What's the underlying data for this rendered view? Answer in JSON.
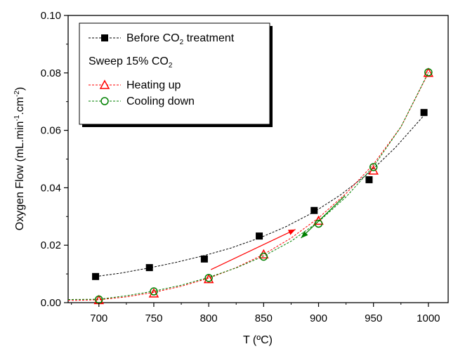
{
  "chart_data": {
    "type": "scatter",
    "xlabel": "T (ºC)",
    "ylabel_main": "Oxygen Flow (mL.min",
    "ylabel_sup1": "-1",
    "ylabel_mid": ".cm",
    "ylabel_sup2": "-2",
    "ylabel_end": ")",
    "xlim": [
      672,
      1018
    ],
    "ylim": [
      0,
      0.1
    ],
    "x_ticks": [
      700,
      750,
      800,
      850,
      900,
      950,
      1000
    ],
    "x_tick_labels": [
      "700",
      "750",
      "800",
      "850",
      "900",
      "950",
      "1000"
    ],
    "y_ticks": [
      0,
      0.02,
      0.04,
      0.06,
      0.08,
      0.1
    ],
    "y_tick_labels": [
      "0.00",
      "0.02",
      "0.04",
      "0.06",
      "0.08",
      "0.10"
    ],
    "series": [
      {
        "name_main": "Before CO",
        "name_sub": "2",
        "name_end": " treatment",
        "marker": "square",
        "color": "#000000",
        "x": [
          697,
          746,
          796,
          846,
          896,
          946,
          996
        ],
        "y": [
          0.0091,
          0.0122,
          0.0152,
          0.0232,
          0.0321,
          0.0428,
          0.0662
        ],
        "fit": [
          [
            697,
            0.0091
          ],
          [
            720,
            0.0103
          ],
          [
            746,
            0.0121
          ],
          [
            770,
            0.014
          ],
          [
            796,
            0.0164
          ],
          [
            820,
            0.019
          ],
          [
            846,
            0.0225
          ],
          [
            870,
            0.0264
          ],
          [
            896,
            0.0316
          ],
          [
            920,
            0.0375
          ],
          [
            946,
            0.0452
          ],
          [
            970,
            0.054
          ],
          [
            996,
            0.0652
          ]
        ]
      },
      {
        "name": "Heating up",
        "marker": "triangle",
        "color": "#ff0000",
        "x": [
          700,
          750,
          800,
          850,
          900,
          950,
          1000
        ],
        "y": [
          0.0009,
          0.0032,
          0.0082,
          0.0168,
          0.0285,
          0.046,
          0.08
        ],
        "fit": [
          [
            672,
            0.0008
          ],
          [
            680,
            0.0008
          ],
          [
            700,
            0.001
          ],
          [
            725,
            0.002
          ],
          [
            750,
            0.0036
          ],
          [
            775,
            0.0057
          ],
          [
            800,
            0.0085
          ],
          [
            825,
            0.0122
          ],
          [
            850,
            0.0168
          ],
          [
            875,
            0.0225
          ],
          [
            900,
            0.0295
          ],
          [
            925,
            0.038
          ],
          [
            950,
            0.0482
          ],
          [
            975,
            0.0612
          ],
          [
            1000,
            0.08
          ]
        ]
      },
      {
        "name": "Cooling down",
        "marker": "circle",
        "color": "#008000",
        "x": [
          700,
          750,
          800,
          850,
          900,
          950,
          1000
        ],
        "y": [
          0.0011,
          0.0039,
          0.0086,
          0.016,
          0.0275,
          0.0472,
          0.0802
        ],
        "fit": [
          [
            672,
            0.0011
          ],
          [
            700,
            0.0012
          ],
          [
            725,
            0.0024
          ],
          [
            750,
            0.004
          ],
          [
            775,
            0.0061
          ],
          [
            800,
            0.0088
          ],
          [
            825,
            0.0121
          ],
          [
            850,
            0.0162
          ],
          [
            875,
            0.0214
          ],
          [
            900,
            0.0282
          ],
          [
            925,
            0.0368
          ],
          [
            950,
            0.0474
          ],
          [
            975,
            0.0612
          ],
          [
            1000,
            0.0802
          ]
        ]
      }
    ],
    "legend": {
      "placement": "top-left",
      "subtitle_main": "Sweep 15% CO",
      "subtitle_sub": "2"
    },
    "arrows": [
      {
        "name": "heating-arrow",
        "color": "#ff0000",
        "from": [
          802,
          0.0115
        ],
        "to": [
          879,
          0.0255
        ]
      },
      {
        "name": "cooling-arrow",
        "color": "#008000",
        "from": [
          924,
          0.0372
        ],
        "to": [
          884,
          0.0225
        ]
      }
    ]
  }
}
